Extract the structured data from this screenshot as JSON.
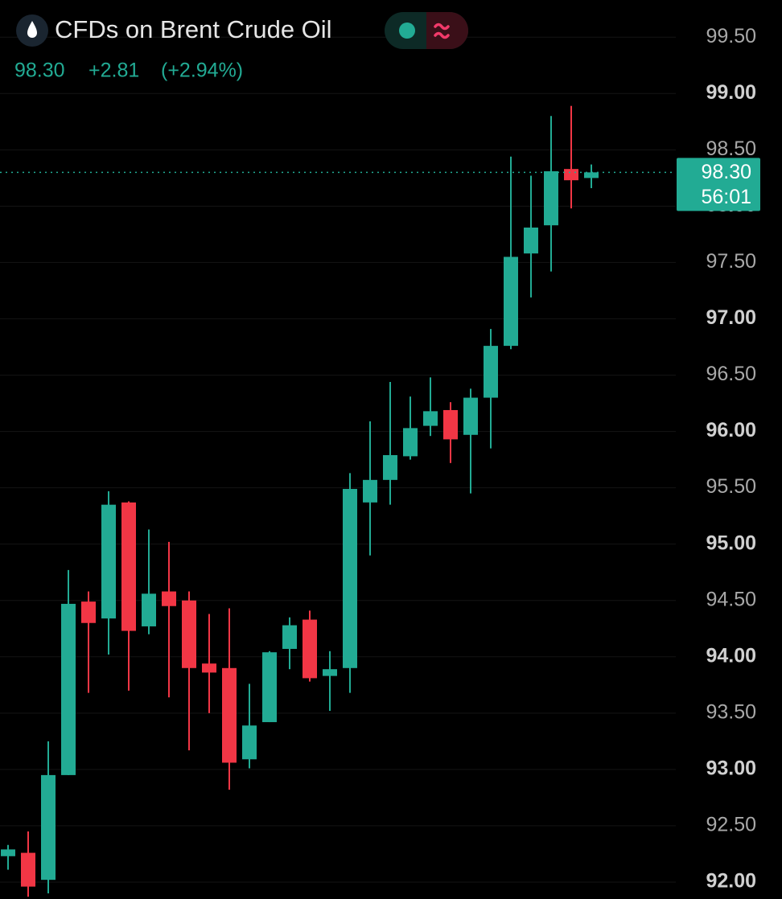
{
  "chart_data": {
    "type": "candlestick",
    "title": "CFDs on Brent Crude Oil",
    "last_price": {
      "value": 98.3,
      "label": "98.30"
    },
    "change": "+2.81",
    "change_pct": "(+2.94%)",
    "countdown": "56:01",
    "up_color": "#22ab94",
    "down_color": "#f23645",
    "grid": true,
    "ylim": [
      91.85,
      99.83
    ],
    "yticks": [
      {
        "value": 92,
        "label": "92.00"
      },
      {
        "value": 92.5,
        "label": "92.50"
      },
      {
        "value": 93,
        "label": "93.00"
      },
      {
        "value": 93.5,
        "label": "93.50"
      },
      {
        "value": 94,
        "label": "94.00"
      },
      {
        "value": 94.5,
        "label": "94.50"
      },
      {
        "value": 95,
        "label": "95.00"
      },
      {
        "value": 95.5,
        "label": "95.50"
      },
      {
        "value": 96,
        "label": "96.00"
      },
      {
        "value": 96.5,
        "label": "96.50"
      },
      {
        "value": 97,
        "label": "97.00"
      },
      {
        "value": 97.5,
        "label": "97.50"
      },
      {
        "value": 98,
        "label": "98.00"
      },
      {
        "value": 98.5,
        "label": "98.50"
      },
      {
        "value": 99,
        "label": "99.00"
      },
      {
        "value": 99.5,
        "label": "99.50"
      }
    ],
    "candles": [
      {
        "open": 92.23,
        "high": 92.33,
        "low": 92.11,
        "close": 92.29
      },
      {
        "open": 92.26,
        "high": 92.45,
        "low": 91.87,
        "close": 91.96
      },
      {
        "open": 92.02,
        "high": 93.25,
        "low": 91.9,
        "close": 92.95
      },
      {
        "open": 92.95,
        "high": 94.77,
        "low": 92.95,
        "close": 94.47
      },
      {
        "open": 94.49,
        "high": 94.58,
        "low": 93.68,
        "close": 94.3
      },
      {
        "open": 94.34,
        "high": 95.47,
        "low": 94.02,
        "close": 95.35
      },
      {
        "open": 95.37,
        "high": 95.38,
        "low": 93.7,
        "close": 94.23
      },
      {
        "open": 94.27,
        "high": 95.13,
        "low": 94.2,
        "close": 94.56
      },
      {
        "open": 94.58,
        "high": 95.02,
        "low": 93.64,
        "close": 94.45
      },
      {
        "open": 94.5,
        "high": 94.58,
        "low": 93.17,
        "close": 93.9
      },
      {
        "open": 93.94,
        "high": 94.38,
        "low": 93.5,
        "close": 93.86
      },
      {
        "open": 93.9,
        "high": 94.43,
        "low": 92.82,
        "close": 93.06
      },
      {
        "open": 93.09,
        "high": 93.76,
        "low": 93.01,
        "close": 93.39
      },
      {
        "open": 93.42,
        "high": 94.05,
        "low": 93.42,
        "close": 94.04
      },
      {
        "open": 94.07,
        "high": 94.35,
        "low": 93.89,
        "close": 94.28
      },
      {
        "open": 94.33,
        "high": 94.41,
        "low": 93.78,
        "close": 93.81
      },
      {
        "open": 93.83,
        "high": 94.05,
        "low": 93.52,
        "close": 93.89
      },
      {
        "open": 93.9,
        "high": 95.63,
        "low": 93.68,
        "close": 95.49
      },
      {
        "open": 95.37,
        "high": 96.09,
        "low": 94.9,
        "close": 95.57
      },
      {
        "open": 95.57,
        "high": 96.44,
        "low": 95.35,
        "close": 95.79
      },
      {
        "open": 95.78,
        "high": 96.31,
        "low": 95.75,
        "close": 96.03
      },
      {
        "open": 96.05,
        "high": 96.48,
        "low": 95.96,
        "close": 96.18
      },
      {
        "open": 96.19,
        "high": 96.26,
        "low": 95.72,
        "close": 95.93
      },
      {
        "open": 95.97,
        "high": 96.38,
        "low": 95.45,
        "close": 96.3
      },
      {
        "open": 96.3,
        "high": 96.91,
        "low": 95.85,
        "close": 96.76
      },
      {
        "open": 96.76,
        "high": 98.44,
        "low": 96.73,
        "close": 97.55
      },
      {
        "open": 97.58,
        "high": 98.27,
        "low": 97.19,
        "close": 97.81
      },
      {
        "open": 97.83,
        "high": 98.8,
        "low": 97.42,
        "close": 98.31
      },
      {
        "open": 98.33,
        "high": 98.89,
        "low": 97.98,
        "close": 98.23
      },
      {
        "open": 98.25,
        "high": 98.37,
        "low": 98.16,
        "close": 98.3
      }
    ]
  }
}
